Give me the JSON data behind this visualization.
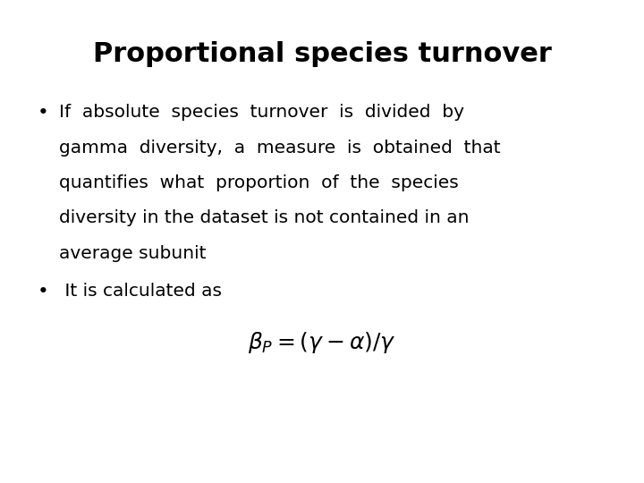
{
  "title": "Proportional species turnover",
  "title_fontsize": 22,
  "title_fontweight": "bold",
  "background_color": "#ffffff",
  "text_color": "#000000",
  "bullet1_lines": [
    "If  absolute  species  turnover  is  divided  by",
    "gamma  diversity,  a  measure  is  obtained  that",
    "quantifies  what  proportion  of  the  species",
    "diversity in the dataset is not contained in an",
    "average subunit"
  ],
  "bullet2_line": " It is calculated as",
  "formula": "$\\beta_P = (\\gamma - \\alpha)/\\gamma$",
  "bullet_fontsize": 14.5,
  "formula_fontsize": 18,
  "font_family": "Arial"
}
